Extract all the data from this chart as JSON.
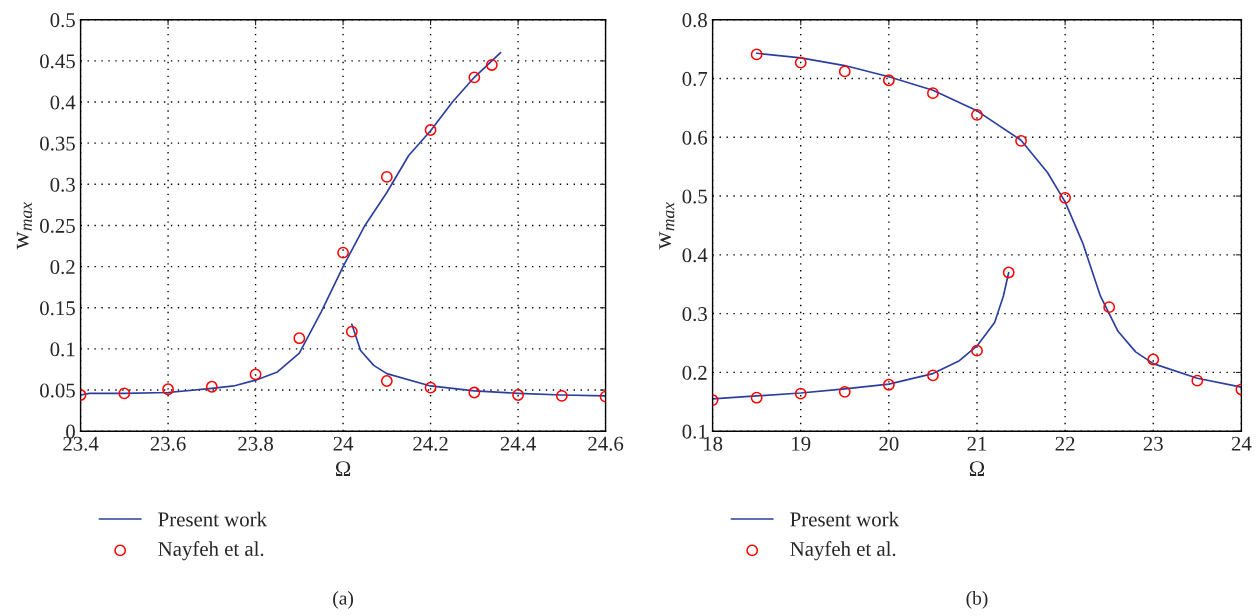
{
  "chart_data": [
    {
      "type": "line",
      "xlabel": "Ω",
      "ylabel": "w$_{max}$",
      "annotations": [
        "(a)"
      ],
      "xlim": [
        23.4,
        24.6
      ],
      "ylim": [
        0,
        0.5
      ],
      "xticks": [
        23.4,
        23.6,
        23.8,
        24,
        24.2,
        24.4,
        24.6
      ],
      "yticks": [
        0,
        0.05,
        0.1,
        0.15,
        0.2,
        0.25,
        0.3,
        0.35,
        0.4,
        0.45,
        0.5
      ],
      "grid": true,
      "legend": "bottom",
      "series": [
        {
          "name": "Present work",
          "color": "#2b3fa0",
          "marker": "none",
          "line_style": "solid",
          "x": [
            23.4,
            23.42,
            23.5,
            23.6,
            23.7,
            23.75,
            23.8,
            23.85,
            23.9,
            23.95,
            24.0,
            24.05,
            24.1,
            24.15,
            24.2,
            24.25,
            24.3,
            24.36
          ],
          "values": [
            0.044,
            0.046,
            0.046,
            0.047,
            0.052,
            0.055,
            0.062,
            0.072,
            0.095,
            0.145,
            0.2,
            0.25,
            0.29,
            0.335,
            0.365,
            0.4,
            0.43,
            0.46
          ]
        },
        {
          "color": "#2b3fa0",
          "marker": "none",
          "line_style": "solid",
          "x": [
            24.02,
            24.04,
            24.07,
            24.1,
            24.2,
            24.3,
            24.4,
            24.5,
            24.6
          ],
          "values": [
            0.13,
            0.098,
            0.08,
            0.07,
            0.055,
            0.049,
            0.046,
            0.044,
            0.043
          ]
        },
        {
          "name": "Nayfeh et al.",
          "type": "scatter",
          "color": "#ff0000",
          "marker": "circle",
          "x": [
            23.4,
            23.5,
            23.6,
            23.7,
            23.8,
            23.9,
            24.0,
            24.02,
            24.1,
            24.1,
            24.2,
            24.2,
            24.3,
            24.3,
            24.34,
            24.4,
            24.5,
            24.6
          ],
          "values": [
            0.044,
            0.046,
            0.051,
            0.054,
            0.069,
            0.113,
            0.217,
            0.121,
            0.309,
            0.061,
            0.366,
            0.053,
            0.43,
            0.047,
            0.445,
            0.044,
            0.043,
            0.042
          ]
        }
      ]
    },
    {
      "type": "line",
      "xlabel": "Ω",
      "ylabel": "w$_{max}$",
      "annotations": [
        "(b)"
      ],
      "xlim": [
        18,
        24
      ],
      "ylim": [
        0.1,
        0.8
      ],
      "xticks": [
        18,
        19,
        20,
        21,
        22,
        23,
        24
      ],
      "yticks": [
        0.1,
        0.2,
        0.3,
        0.4,
        0.5,
        0.6,
        0.7,
        0.8
      ],
      "grid": true,
      "legend": "bottom",
      "series": [
        {
          "name": "Present work",
          "color": "#2b3fa0",
          "marker": "none",
          "line_style": "solid",
          "x": [
            18.5,
            19,
            19.5,
            20,
            20.5,
            21,
            21.5,
            21.8,
            22,
            22.2,
            22.4,
            22.6,
            22.8,
            23,
            23.5,
            24
          ],
          "values": [
            0.743,
            0.735,
            0.722,
            0.703,
            0.68,
            0.645,
            0.595,
            0.54,
            0.49,
            0.42,
            0.33,
            0.27,
            0.235,
            0.215,
            0.19,
            0.175
          ]
        },
        {
          "color": "#2b3fa0",
          "marker": "none",
          "line_style": "solid",
          "x": [
            18,
            18.5,
            19,
            19.5,
            20,
            20.5,
            20.8,
            21,
            21.2,
            21.3,
            21.36
          ],
          "values": [
            0.155,
            0.16,
            0.165,
            0.172,
            0.18,
            0.198,
            0.22,
            0.245,
            0.285,
            0.33,
            0.37
          ]
        },
        {
          "name": "Nayfeh et al.",
          "type": "scatter",
          "color": "#ff0000",
          "marker": "circle",
          "x": [
            18,
            18.5,
            18.5,
            19,
            19,
            19.5,
            19.5,
            20,
            20,
            20.5,
            20.5,
            21,
            21,
            21.36,
            21.5,
            22,
            22.5,
            23,
            23.5,
            24
          ],
          "values": [
            0.153,
            0.157,
            0.741,
            0.164,
            0.727,
            0.167,
            0.712,
            0.179,
            0.697,
            0.195,
            0.675,
            0.237,
            0.638,
            0.37,
            0.594,
            0.497,
            0.311,
            0.222,
            0.186,
            0.171
          ]
        }
      ]
    }
  ]
}
